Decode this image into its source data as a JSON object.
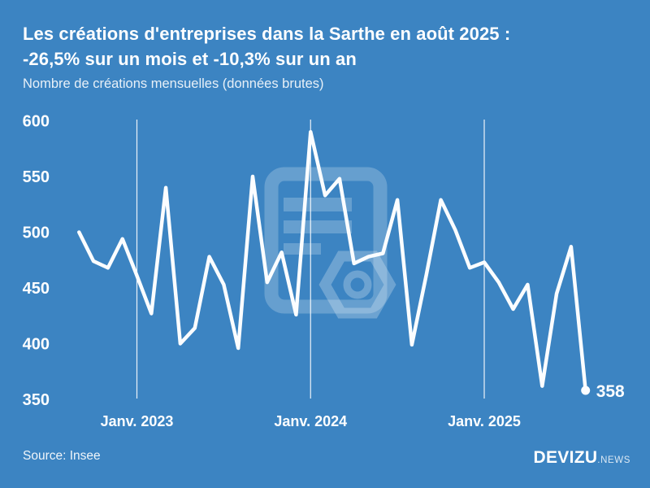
{
  "header": {
    "title_line1": "Les créations d'entreprises dans la Sarthe en août 2025 :",
    "title_line2": "-26,5% sur un mois et -10,3% sur un an",
    "subtitle": "Nombre de créations mensuelles (données brutes)"
  },
  "footer": {
    "source": "Source: Insee",
    "brand": "DEVIZU",
    "brand_suffix": ".NEWS"
  },
  "chart_data": {
    "type": "line",
    "title": "Les créations d'entreprises dans la Sarthe en août 2025 : -26,5% sur un mois et -10,3% sur un an",
    "ylabel": "Nombre de créations mensuelles (données brutes)",
    "x": [
      "2022-09",
      "2022-10",
      "2022-11",
      "2022-12",
      "2023-01",
      "2023-02",
      "2023-03",
      "2023-04",
      "2023-05",
      "2023-06",
      "2023-07",
      "2023-08",
      "2023-09",
      "2023-10",
      "2023-11",
      "2023-12",
      "2024-01",
      "2024-02",
      "2024-03",
      "2024-04",
      "2024-05",
      "2024-06",
      "2024-07",
      "2024-08",
      "2024-09",
      "2024-10",
      "2024-11",
      "2024-12",
      "2025-01",
      "2025-02",
      "2025-03",
      "2025-04",
      "2025-05",
      "2025-06",
      "2025-07",
      "2025-08"
    ],
    "values": [
      500,
      474,
      468,
      494,
      461,
      427,
      540,
      400,
      414,
      478,
      453,
      396,
      550,
      455,
      482,
      426,
      590,
      533,
      548,
      472,
      478,
      481,
      529,
      399,
      462,
      529,
      502,
      468,
      473,
      455,
      431,
      453,
      362,
      445,
      487,
      358
    ],
    "ylim": [
      350,
      600
    ],
    "y_ticks": [
      600,
      550,
      500,
      450,
      400,
      350
    ],
    "x_tick_labels": [
      "Janv. 2023",
      "Janv. 2024",
      "Janv. 2025"
    ],
    "x_tick_month_indices": [
      4,
      16,
      28
    ],
    "grid": "vertical-only",
    "legend": "none",
    "last_point_label": "358",
    "line_color": "#fbfdff",
    "grid_color": "rgba(255,255,255,0.9)",
    "background_color": "#3c84c2"
  }
}
